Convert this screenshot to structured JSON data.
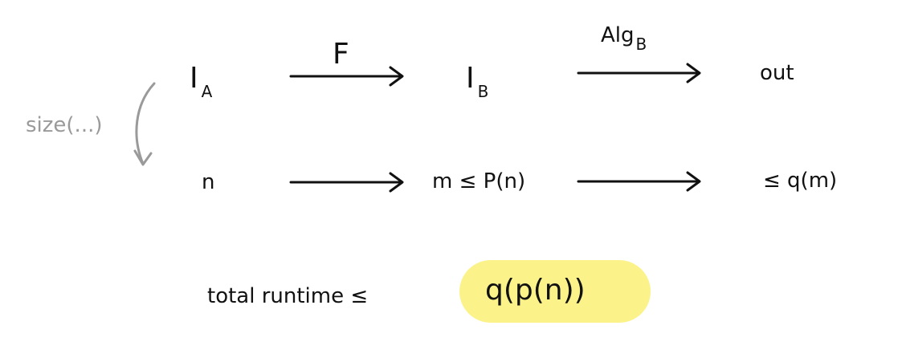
{
  "nodes": {
    "ia": {
      "main": "I",
      "sub": "A"
    },
    "ib": {
      "main": "I",
      "sub": "B"
    },
    "out": "out",
    "n": "n",
    "m": "m ≤ P(n)",
    "q": "≤  q(m)"
  },
  "edges": {
    "f_label": "F",
    "alg_label": "Alg",
    "alg_sub": "B"
  },
  "size_label": "size(...)",
  "total": {
    "label": "total runtime  ≤",
    "value": "q(p(n))"
  },
  "colors": {
    "ink": "#111111",
    "gray": "#9a9a9a",
    "highlight": "#fbf38a"
  }
}
